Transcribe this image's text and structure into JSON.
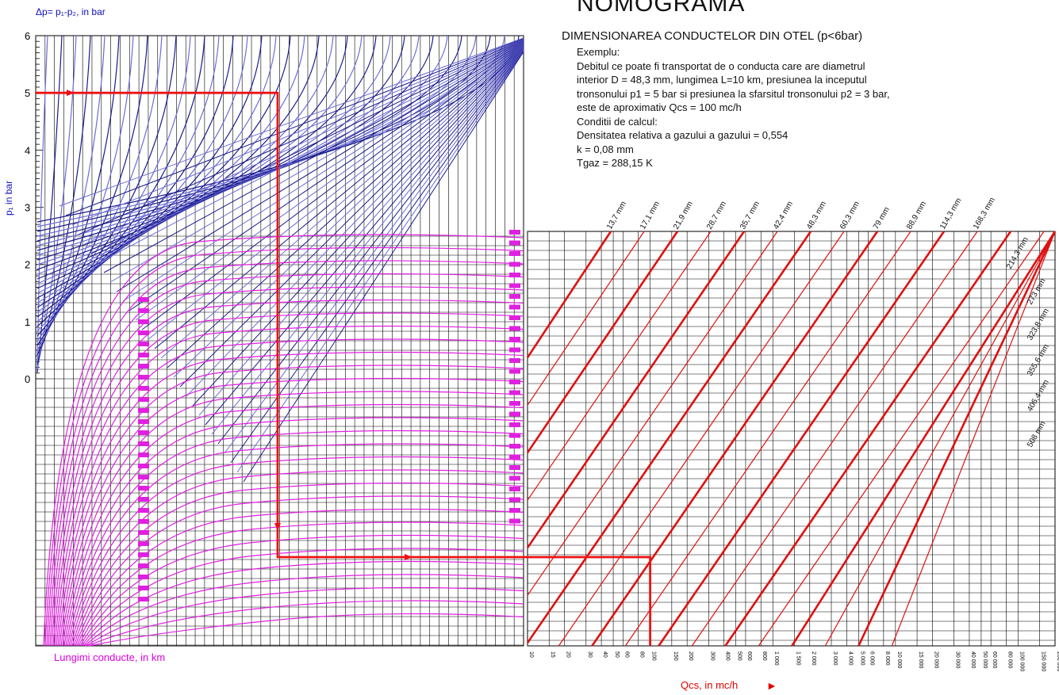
{
  "header": {
    "title": "NOMOGRAMA",
    "subtitle": "DIMENSIONAREA CONDUCTELOR DIN OTEL (p<6bar)"
  },
  "example": {
    "lines": [
      "Exemplu:",
      "Debitul ce poate fi transportat de o conducta care are diametrul",
      "interior D = 48,3 mm, lungimea  L=10 km, presiunea la inceputul",
      "tronsonului p1 = 5 bar si presiunea la sfarsitul tronsonului p2 = 3 bar,",
      "este de aproximativ Qcs = 100 mc/h",
      "Conditii de calcul:",
      "Densitatea relativa a gazului a gazului = 0,554",
      "k = 0,08 mm",
      "Tgaz = 288,15 K"
    ]
  },
  "axes": {
    "top_label": "Δp= p₁-p₂, in bar",
    "left_label": "p₁ in bar",
    "bottom_left_label": "Lungimi conducte, in km",
    "bottom_right_label": "Qcs, in mc/h"
  },
  "chart_data": {
    "type": "line",
    "title": "NOMOGRAMA",
    "pressure_axis": {
      "label": "p₁ in bar",
      "major_ticks": [
        "6",
        "5",
        "4",
        "3",
        "2",
        "1",
        "0"
      ],
      "range": [
        0,
        6
      ]
    },
    "flow_axis": {
      "label": "Qcs, in mc/h",
      "scale": "log",
      "range": [
        10,
        200000
      ],
      "tick_labels": [
        "10",
        "15",
        "20",
        "30",
        "40",
        "50",
        "60",
        "80",
        "100",
        "150",
        "200",
        "300",
        "400",
        "500",
        "600",
        "800",
        "1 000",
        "1 500",
        "2 000",
        "3 000",
        "4 000",
        "5 000",
        "6 000",
        "8 000",
        "10 000",
        "15 000",
        "20 000",
        "30 000",
        "40 000",
        "50 000",
        "60 000",
        "80 000",
        "100 000",
        "150 000",
        "200 000"
      ]
    },
    "length_axis_label": "Lungimi conducte, in km",
    "pipe_diameters": [
      "13,7 mm",
      "17,1 mm",
      "21,9 mm",
      "28,7 mm",
      "35,7 mm",
      "42,4 mm",
      "48,3 mm",
      "60,3 mm",
      "79 mm",
      "88,9 mm",
      "114,3 mm",
      "168,3 mm",
      "214,3 mm",
      "273 mm",
      "323,8 mm",
      "355,6 mm",
      "406,4 mm",
      "508 mm"
    ],
    "example_path": {
      "p1_bar": 5,
      "p2_bar": 3,
      "length_km": 10,
      "diameter_mm": 48.3,
      "result_Qcs_mc_h": 100
    },
    "grid": true
  },
  "colors": {
    "pressure_curves": "#1a1a8c",
    "pressure_curves_light": "#6c6cd8",
    "length_curves": "#e020e0",
    "diameter_lines": "#e01010",
    "example_path": "#ee1111",
    "grid": "#000000"
  }
}
